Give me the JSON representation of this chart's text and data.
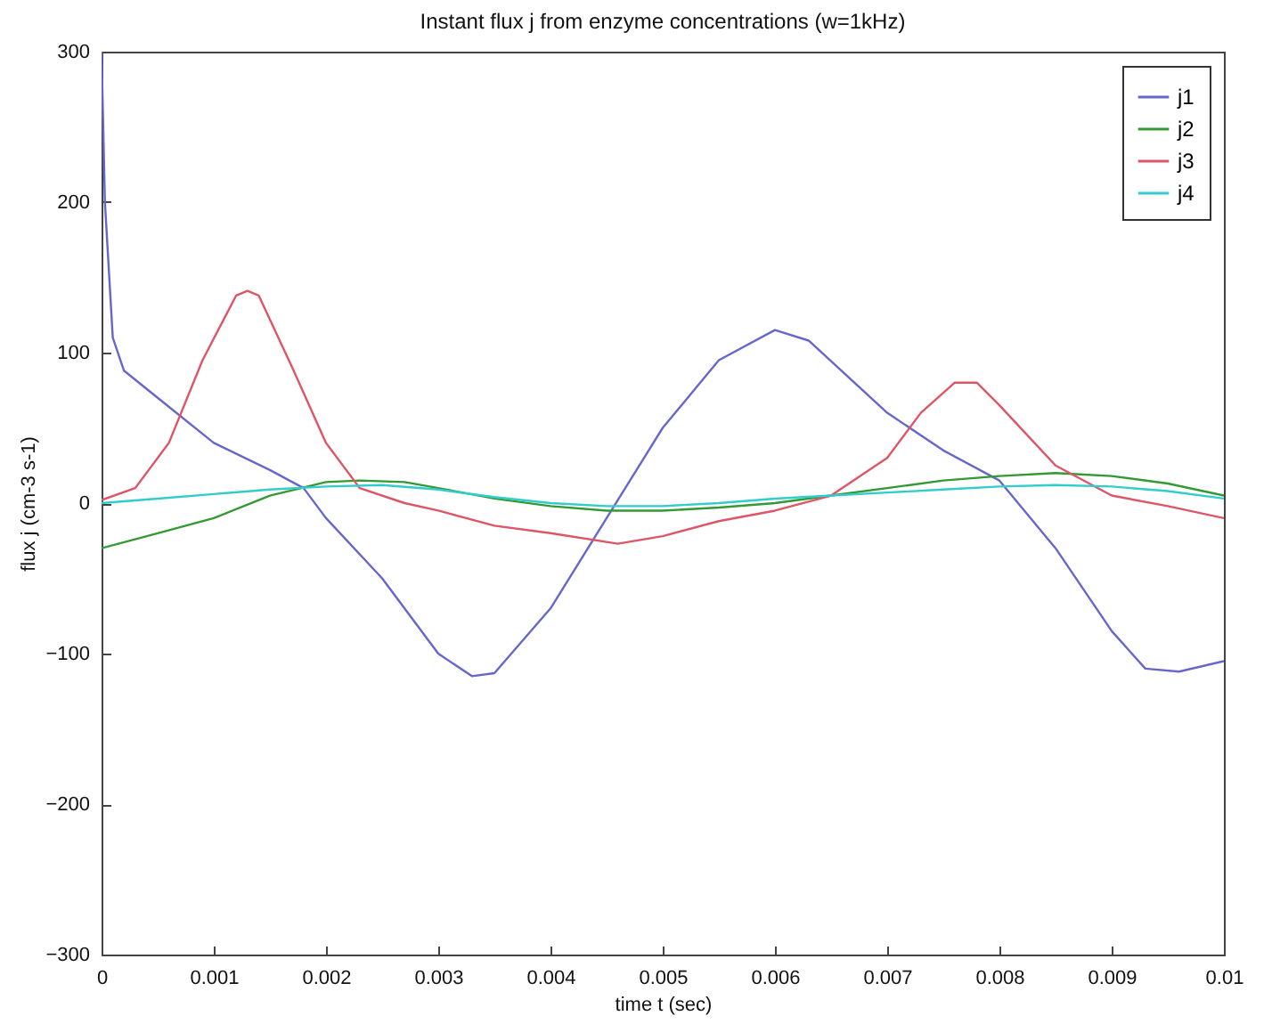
{
  "chart_data": {
    "type": "line",
    "title": "Instant flux j from enzyme concentrations (w=1kHz)",
    "xlabel": "time t (sec)",
    "ylabel": "flux j (cm-3 s-1)",
    "xlim": [
      0,
      0.01
    ],
    "xticks": [
      0,
      0.001,
      0.002,
      0.003,
      0.004,
      0.005,
      0.006,
      0.007,
      0.008,
      0.009,
      0.01
    ],
    "ylim": [
      -300,
      300
    ],
    "yticks": [
      -300,
      -200,
      -100,
      0,
      100,
      200,
      300
    ],
    "legend": "top right",
    "grid": false,
    "series": [
      {
        "name": "j1",
        "color": "#6666cc",
        "x": [
          0,
          3e-05,
          0.0001,
          0.0002,
          0.0005,
          0.001,
          0.0015,
          0.0018,
          0.002,
          0.0025,
          0.003,
          0.0033,
          0.0035,
          0.004,
          0.0045,
          0.005,
          0.0055,
          0.006,
          0.0063,
          0.007,
          0.0075,
          0.008,
          0.0085,
          0.009,
          0.0093,
          0.0096,
          0.01
        ],
        "values": [
          300,
          200,
          110,
          88,
          70,
          40,
          22,
          10,
          -10,
          -50,
          -100,
          -115,
          -113,
          -70,
          -10,
          50,
          95,
          115,
          108,
          60,
          35,
          15,
          -30,
          -85,
          -110,
          -112,
          -105
        ]
      },
      {
        "name": "j2",
        "color": "#339933",
        "x": [
          0,
          0.0005,
          0.001,
          0.0015,
          0.002,
          0.0023,
          0.0027,
          0.003,
          0.0035,
          0.004,
          0.0045,
          0.005,
          0.0055,
          0.006,
          0.0065,
          0.007,
          0.0075,
          0.008,
          0.0085,
          0.009,
          0.0095,
          0.01
        ],
        "values": [
          -30,
          -20,
          -10,
          5,
          14,
          15,
          14,
          10,
          3,
          -2,
          -5,
          -5,
          -3,
          0,
          5,
          10,
          15,
          18,
          20,
          18,
          13,
          5
        ]
      },
      {
        "name": "j3",
        "color": "#dd5566",
        "x": [
          0,
          0.0003,
          0.0006,
          0.0009,
          0.0012,
          0.0013,
          0.0014,
          0.0017,
          0.002,
          0.0023,
          0.0027,
          0.003,
          0.0035,
          0.004,
          0.0046,
          0.005,
          0.0055,
          0.006,
          0.0065,
          0.007,
          0.0073,
          0.0076,
          0.0078,
          0.008,
          0.0085,
          0.009,
          0.0095,
          0.01
        ],
        "values": [
          2,
          10,
          40,
          95,
          138,
          141,
          138,
          90,
          40,
          10,
          0,
          -5,
          -15,
          -20,
          -27,
          -22,
          -12,
          -5,
          5,
          30,
          60,
          80,
          80,
          65,
          25,
          5,
          -2,
          -10
        ]
      },
      {
        "name": "j4",
        "color": "#33cccc",
        "x": [
          0,
          0.0005,
          0.001,
          0.0015,
          0.002,
          0.0025,
          0.003,
          0.0035,
          0.004,
          0.0045,
          0.005,
          0.0055,
          0.006,
          0.0065,
          0.007,
          0.0075,
          0.008,
          0.0085,
          0.009,
          0.0095,
          0.01
        ],
        "values": [
          0,
          3,
          6,
          9,
          11,
          12,
          9,
          4,
          0,
          -2,
          -2,
          0,
          3,
          5,
          7,
          9,
          11,
          12,
          11,
          8,
          3
        ]
      }
    ]
  }
}
